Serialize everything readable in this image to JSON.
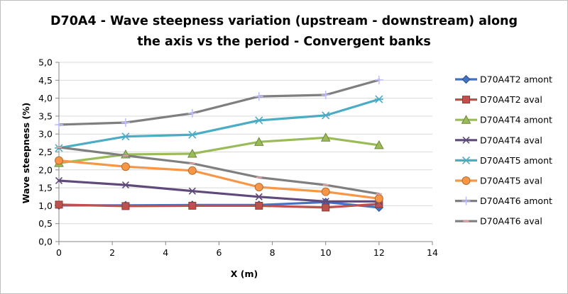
{
  "chart_data": {
    "type": "line",
    "title_lines": [
      "D70A4 - Wave steepness variation (upstream - downstream) along",
      "the axis vs the period - Convergent banks"
    ],
    "xlabel": "X (m)",
    "ylabel": "Wave steepness (%)",
    "xlim": [
      0,
      14
    ],
    "ylim": [
      0,
      5
    ],
    "xticks": [
      0,
      2,
      4,
      6,
      8,
      10,
      12,
      14
    ],
    "yticks": [
      0,
      0.5,
      1,
      1.5,
      2,
      2.5,
      3,
      3.5,
      4,
      4.5,
      5
    ],
    "xtick_labels": [
      "0",
      "2",
      "4",
      "6",
      "8",
      "10",
      "12",
      "14"
    ],
    "ytick_labels": [
      "0,0",
      "0,5",
      "1,0",
      "1,5",
      "2,0",
      "2,5",
      "3,0",
      "3,5",
      "4,0",
      "4,5",
      "5,0"
    ],
    "grid": "horizontal",
    "legend_position": "right",
    "x": [
      0,
      2.5,
      5,
      7.5,
      10,
      12
    ],
    "series": [
      {
        "name": "D70A4T2 amont",
        "color": "#4472c4",
        "marker": "diamond",
        "values": [
          1.01,
          1.01,
          1.02,
          1.02,
          1.1,
          0.95
        ]
      },
      {
        "name": "D70A4T2 aval",
        "color": "#c0504d",
        "marker": "square",
        "values": [
          1.03,
          0.99,
          1.0,
          1.0,
          0.95,
          1.05
        ]
      },
      {
        "name": "D70A4T4 amont",
        "color": "#9bbb59",
        "marker": "triangle",
        "values": [
          2.19,
          2.43,
          2.45,
          2.78,
          2.9,
          2.69
        ]
      },
      {
        "name": "D70A4T4 aval",
        "color": "#604a7b",
        "marker": "x",
        "values": [
          1.7,
          1.58,
          1.41,
          1.25,
          1.12,
          1.12
        ]
      },
      {
        "name": "D70A4T5 amont",
        "color": "#4bacc6",
        "marker": "asterisk",
        "values": [
          2.61,
          2.93,
          2.98,
          3.38,
          3.52,
          3.97
        ]
      },
      {
        "name": "D70A4T5 aval",
        "color": "#f79646",
        "marker": "circle",
        "values": [
          2.26,
          2.09,
          1.98,
          1.52,
          1.39,
          1.2
        ]
      },
      {
        "name": "D70A4T6 amont",
        "color": "#7f7f7f",
        "marker": "plus",
        "values": [
          3.26,
          3.32,
          3.58,
          4.05,
          4.09,
          4.51
        ]
      },
      {
        "name": "D70A4T6 aval",
        "color": "#7f7f7f",
        "marker": "dash",
        "values": [
          2.63,
          2.4,
          2.18,
          1.79,
          1.58,
          1.33
        ]
      }
    ]
  }
}
